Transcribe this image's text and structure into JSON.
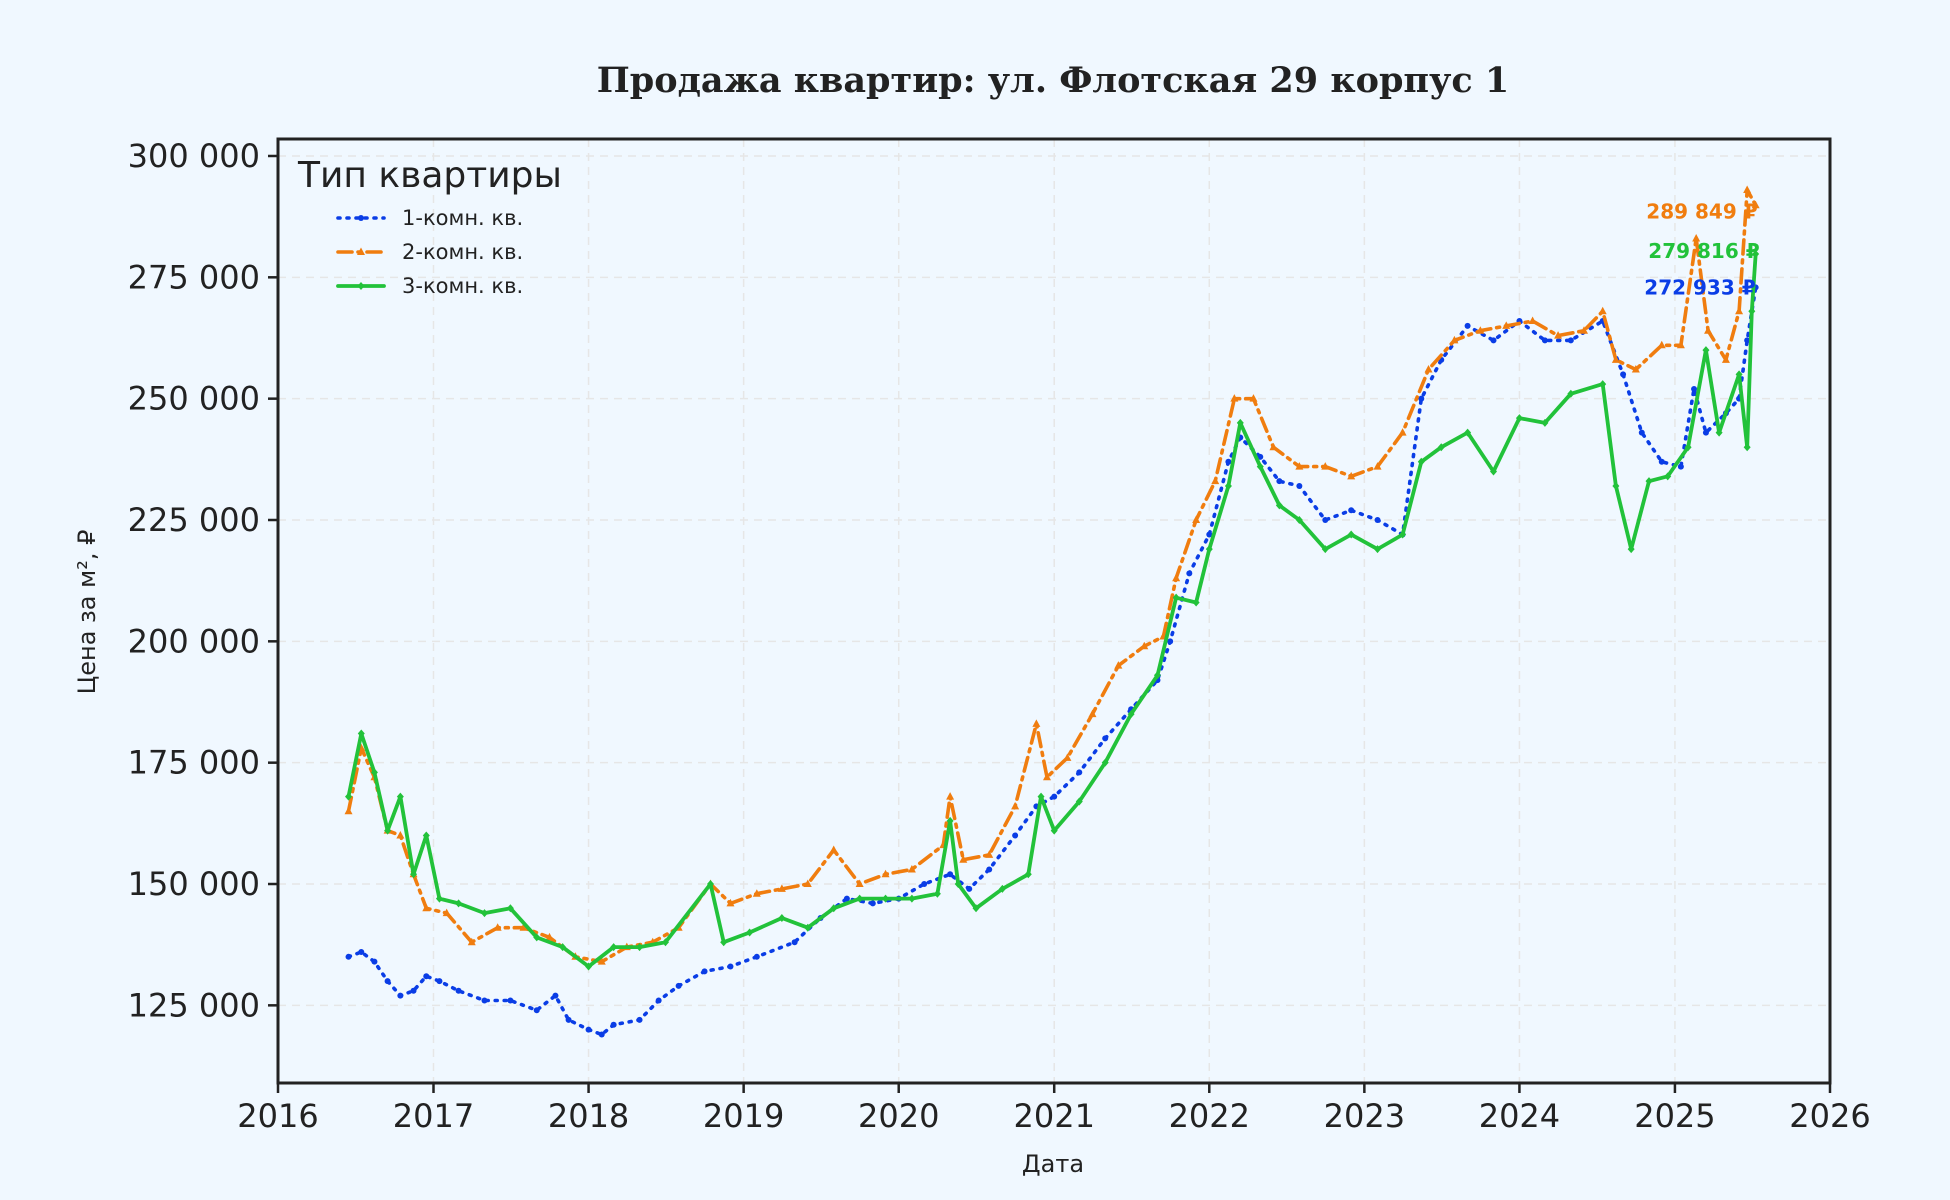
{
  "chart_data": {
    "type": "line",
    "title": "Продажа квартир: ул. Флотская 29 корпус 1",
    "xlabel": "Дата",
    "ylabel": "Цена за м², ₽",
    "xlim": [
      "2016-01-01",
      "2026-01-01"
    ],
    "ylim": [
      109000,
      303500
    ],
    "x_ticks": [
      "2016",
      "2017",
      "2018",
      "2019",
      "2020",
      "2021",
      "2022",
      "2023",
      "2024",
      "2025",
      "2026"
    ],
    "y_ticks": [
      125000,
      150000,
      175000,
      200000,
      225000,
      250000,
      275000,
      300000
    ],
    "y_tick_labels": [
      "125 000",
      "150 000",
      "175 000",
      "200 000",
      "225 000",
      "250 000",
      "275 000",
      "300 000"
    ],
    "grid": true,
    "legend": {
      "title": "Тип квартиры",
      "placement": "top-left"
    },
    "series": [
      {
        "name": "1-комн. кв.",
        "color": "#0a3de6",
        "style": "dotted",
        "marker": "star",
        "end_label": "272 933 ₽",
        "points": [
          [
            "2016-06-15",
            135000
          ],
          [
            "2016-07-15",
            136000
          ],
          [
            "2016-08-15",
            134000
          ],
          [
            "2016-09-15",
            130000
          ],
          [
            "2016-10-15",
            127000
          ],
          [
            "2016-11-15",
            128000
          ],
          [
            "2016-12-15",
            131000
          ],
          [
            "2017-01-15",
            130000
          ],
          [
            "2017-03-01",
            128000
          ],
          [
            "2017-05-01",
            126000
          ],
          [
            "2017-07-01",
            126000
          ],
          [
            "2017-09-01",
            124000
          ],
          [
            "2017-10-15",
            127000
          ],
          [
            "2017-11-15",
            122000
          ],
          [
            "2018-01-01",
            120000
          ],
          [
            "2018-02-01",
            119000
          ],
          [
            "2018-03-01",
            121000
          ],
          [
            "2018-05-01",
            122000
          ],
          [
            "2018-06-15",
            126000
          ],
          [
            "2018-08-01",
            129000
          ],
          [
            "2018-10-01",
            132000
          ],
          [
            "2018-12-01",
            133000
          ],
          [
            "2019-02-01",
            135000
          ],
          [
            "2019-05-01",
            138000
          ],
          [
            "2019-07-01",
            143000
          ],
          [
            "2019-09-01",
            147000
          ],
          [
            "2019-11-01",
            146000
          ],
          [
            "2020-01-01",
            147000
          ],
          [
            "2020-03-01",
            150000
          ],
          [
            "2020-05-01",
            152000
          ],
          [
            "2020-06-15",
            149000
          ],
          [
            "2020-08-01",
            153000
          ],
          [
            "2020-10-01",
            160000
          ],
          [
            "2020-11-20",
            166000
          ],
          [
            "2021-01-01",
            168000
          ],
          [
            "2021-03-01",
            173000
          ],
          [
            "2021-05-01",
            180000
          ],
          [
            "2021-07-01",
            186000
          ],
          [
            "2021-09-01",
            192000
          ],
          [
            "2021-10-01",
            200000
          ],
          [
            "2021-11-15",
            214000
          ],
          [
            "2022-01-01",
            222000
          ],
          [
            "2022-02-15",
            237000
          ],
          [
            "2022-03-15",
            242000
          ],
          [
            "2022-05-01",
            238000
          ],
          [
            "2022-06-15",
            233000
          ],
          [
            "2022-08-01",
            232000
          ],
          [
            "2022-10-01",
            225000
          ],
          [
            "2022-12-01",
            227000
          ],
          [
            "2023-02-01",
            225000
          ],
          [
            "2023-04-01",
            222000
          ],
          [
            "2023-05-15",
            250000
          ],
          [
            "2023-07-01",
            258000
          ],
          [
            "2023-09-01",
            265000
          ],
          [
            "2023-11-01",
            262000
          ],
          [
            "2024-01-01",
            266000
          ],
          [
            "2024-03-01",
            262000
          ],
          [
            "2024-05-01",
            262000
          ],
          [
            "2024-07-15",
            266000
          ],
          [
            "2024-09-01",
            255000
          ],
          [
            "2024-10-15",
            243000
          ],
          [
            "2024-12-01",
            237000
          ],
          [
            "2025-01-15",
            236000
          ],
          [
            "2025-02-15",
            252000
          ],
          [
            "2025-03-15",
            243000
          ],
          [
            "2025-05-01",
            247000
          ],
          [
            "2025-06-01",
            250000
          ],
          [
            "2025-06-20",
            262000
          ],
          [
            "2025-07-10",
            272933
          ]
        ]
      },
      {
        "name": "2-комн. кв.",
        "color": "#f07d0f",
        "style": "dash-dot",
        "marker": "triangle",
        "end_label": "289 849 ₽",
        "points": [
          [
            "2016-06-15",
            165000
          ],
          [
            "2016-07-15",
            178000
          ],
          [
            "2016-08-15",
            172000
          ],
          [
            "2016-09-15",
            161000
          ],
          [
            "2016-10-15",
            160000
          ],
          [
            "2016-11-15",
            152000
          ],
          [
            "2016-12-15",
            145000
          ],
          [
            "2017-02-01",
            144000
          ],
          [
            "2017-04-01",
            138000
          ],
          [
            "2017-06-01",
            141000
          ],
          [
            "2017-08-01",
            141000
          ],
          [
            "2017-10-01",
            139000
          ],
          [
            "2017-12-01",
            135000
          ],
          [
            "2018-02-01",
            134000
          ],
          [
            "2018-04-01",
            137000
          ],
          [
            "2018-06-01",
            138000
          ],
          [
            "2018-08-01",
            141000
          ],
          [
            "2018-10-15",
            150000
          ],
          [
            "2018-12-01",
            146000
          ],
          [
            "2019-02-01",
            148000
          ],
          [
            "2019-04-01",
            149000
          ],
          [
            "2019-06-01",
            150000
          ],
          [
            "2019-08-01",
            157000
          ],
          [
            "2019-10-01",
            150000
          ],
          [
            "2019-12-01",
            152000
          ],
          [
            "2020-02-01",
            153000
          ],
          [
            "2020-04-15",
            158000
          ],
          [
            "2020-05-01",
            168000
          ],
          [
            "2020-06-01",
            155000
          ],
          [
            "2020-08-01",
            156000
          ],
          [
            "2020-10-01",
            166000
          ],
          [
            "2020-11-20",
            183000
          ],
          [
            "2020-12-15",
            172000
          ],
          [
            "2021-02-01",
            176000
          ],
          [
            "2021-04-01",
            185000
          ],
          [
            "2021-06-01",
            195000
          ],
          [
            "2021-08-01",
            199000
          ],
          [
            "2021-09-15",
            201000
          ],
          [
            "2021-10-15",
            213000
          ],
          [
            "2021-12-01",
            225000
          ],
          [
            "2022-01-15",
            233000
          ],
          [
            "2022-03-01",
            250000
          ],
          [
            "2022-04-15",
            250000
          ],
          [
            "2022-06-01",
            240000
          ],
          [
            "2022-08-01",
            236000
          ],
          [
            "2022-10-01",
            236000
          ],
          [
            "2022-12-01",
            234000
          ],
          [
            "2023-02-01",
            236000
          ],
          [
            "2023-04-01",
            243000
          ],
          [
            "2023-06-01",
            256000
          ],
          [
            "2023-08-01",
            262000
          ],
          [
            "2023-10-01",
            264000
          ],
          [
            "2023-12-01",
            265000
          ],
          [
            "2024-02-01",
            266000
          ],
          [
            "2024-04-01",
            263000
          ],
          [
            "2024-06-01",
            264000
          ],
          [
            "2024-07-15",
            268000
          ],
          [
            "2024-08-15",
            258000
          ],
          [
            "2024-10-01",
            256000
          ],
          [
            "2024-12-01",
            261000
          ],
          [
            "2025-01-15",
            261000
          ],
          [
            "2025-02-20",
            283000
          ],
          [
            "2025-03-20",
            264000
          ],
          [
            "2025-05-01",
            258000
          ],
          [
            "2025-06-01",
            268000
          ],
          [
            "2025-06-20",
            293000
          ],
          [
            "2025-07-10",
            289849
          ]
        ]
      },
      {
        "name": "3-комн. кв.",
        "color": "#22c23a",
        "style": "solid",
        "marker": "diamond",
        "end_label": "279 816 ₽",
        "points": [
          [
            "2016-06-15",
            168000
          ],
          [
            "2016-07-15",
            181000
          ],
          [
            "2016-08-15",
            173000
          ],
          [
            "2016-09-15",
            161000
          ],
          [
            "2016-10-15",
            168000
          ],
          [
            "2016-11-15",
            152000
          ],
          [
            "2016-12-15",
            160000
          ],
          [
            "2017-01-15",
            147000
          ],
          [
            "2017-03-01",
            146000
          ],
          [
            "2017-05-01",
            144000
          ],
          [
            "2017-07-01",
            145000
          ],
          [
            "2017-09-01",
            139000
          ],
          [
            "2017-11-01",
            137000
          ],
          [
            "2018-01-01",
            133000
          ],
          [
            "2018-03-01",
            137000
          ],
          [
            "2018-05-01",
            137000
          ],
          [
            "2018-07-01",
            138000
          ],
          [
            "2018-10-15",
            150000
          ],
          [
            "2018-11-15",
            138000
          ],
          [
            "2019-01-15",
            140000
          ],
          [
            "2019-04-01",
            143000
          ],
          [
            "2019-06-01",
            141000
          ],
          [
            "2019-08-01",
            145000
          ],
          [
            "2019-10-01",
            147000
          ],
          [
            "2019-12-01",
            147000
          ],
          [
            "2020-02-01",
            147000
          ],
          [
            "2020-04-01",
            148000
          ],
          [
            "2020-05-01",
            163000
          ],
          [
            "2020-05-20",
            150000
          ],
          [
            "2020-07-01",
            145000
          ],
          [
            "2020-09-01",
            149000
          ],
          [
            "2020-11-01",
            152000
          ],
          [
            "2020-12-01",
            168000
          ],
          [
            "2021-01-01",
            161000
          ],
          [
            "2021-03-01",
            167000
          ],
          [
            "2021-05-01",
            175000
          ],
          [
            "2021-07-01",
            185000
          ],
          [
            "2021-09-01",
            193000
          ],
          [
            "2021-10-15",
            209000
          ],
          [
            "2021-12-01",
            208000
          ],
          [
            "2022-01-01",
            219000
          ],
          [
            "2022-02-15",
            232000
          ],
          [
            "2022-03-15",
            245000
          ],
          [
            "2022-05-01",
            236000
          ],
          [
            "2022-06-15",
            228000
          ],
          [
            "2022-08-01",
            225000
          ],
          [
            "2022-10-01",
            219000
          ],
          [
            "2022-12-01",
            222000
          ],
          [
            "2023-02-01",
            219000
          ],
          [
            "2023-04-01",
            222000
          ],
          [
            "2023-05-15",
            237000
          ],
          [
            "2023-07-01",
            240000
          ],
          [
            "2023-09-01",
            243000
          ],
          [
            "2023-11-01",
            235000
          ],
          [
            "2024-01-01",
            246000
          ],
          [
            "2024-03-01",
            245000
          ],
          [
            "2024-05-01",
            251000
          ],
          [
            "2024-07-15",
            253000
          ],
          [
            "2024-08-15",
            232000
          ],
          [
            "2024-09-20",
            219000
          ],
          [
            "2024-11-01",
            233000
          ],
          [
            "2024-12-15",
            234000
          ],
          [
            "2025-02-01",
            240000
          ],
          [
            "2025-03-15",
            260000
          ],
          [
            "2025-04-15",
            243000
          ],
          [
            "2025-06-01",
            255000
          ],
          [
            "2025-06-20",
            240000
          ],
          [
            "2025-07-01",
            268000
          ],
          [
            "2025-07-10",
            279816
          ]
        ]
      }
    ]
  }
}
